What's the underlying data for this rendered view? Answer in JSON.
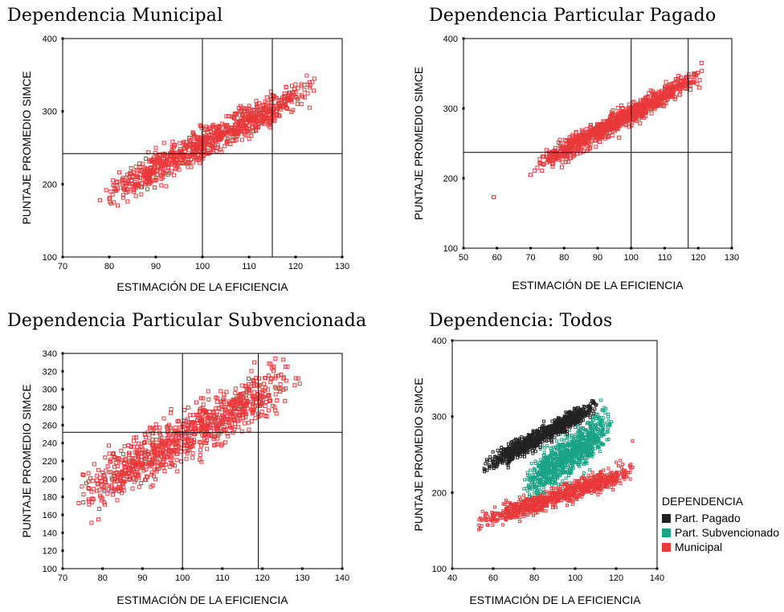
{
  "chart_data": [
    {
      "type": "scatter",
      "title": "Dependencia Municipal",
      "xlabel": "ESTIMACIÓN DE LA EFICIENCIA",
      "ylabel": "PUNTAJE PROMEDIO SIMCE",
      "xlim": [
        70,
        130
      ],
      "ylim": [
        100,
        400
      ],
      "xticks": [
        "70",
        "80",
        "90",
        "100",
        "110",
        "120",
        "130"
      ],
      "yticks": [
        "100",
        "200",
        "300",
        "400"
      ],
      "ref_lines": {
        "x": [
          100,
          115
        ],
        "y": [
          242
        ]
      },
      "marker_color": "#e8393b",
      "cloud": {
        "x_range": [
          78,
          125
        ],
        "trend": {
          "x1": 78,
          "y1": 182,
          "x2": 125,
          "y2": 338
        },
        "spread": 18
      },
      "series": [
        {
          "points": [
            [
              78,
              178
            ],
            [
              80,
              180
            ],
            [
              83,
              185
            ],
            [
              86,
              200
            ],
            [
              90,
              205
            ],
            [
              92,
              215
            ],
            [
              95,
              220
            ],
            [
              98,
              230
            ],
            [
              100,
              235
            ],
            [
              103,
              245
            ],
            [
              106,
              255
            ],
            [
              110,
              270
            ],
            [
              113,
              285
            ],
            [
              115,
              300
            ],
            [
              120,
              320
            ],
            [
              123,
              340
            ],
            [
              124,
              345
            ],
            [
              123,
              305
            ],
            [
              98,
              270
            ],
            [
              90,
              250
            ]
          ]
        }
      ]
    },
    {
      "type": "scatter",
      "title": "Dependencia Particular Pagado",
      "xlabel": "ESTIMACIÓN DE LA EFICIENCIA",
      "ylabel": "PUNTAJE PROMEDIO SIMCE",
      "xlim": [
        50,
        130
      ],
      "ylim": [
        100,
        400
      ],
      "xticks": [
        "50",
        "60",
        "70",
        "80",
        "90",
        "100",
        "110",
        "120",
        "130"
      ],
      "yticks": [
        "100",
        "200",
        "300",
        "400"
      ],
      "ref_lines": {
        "x": [
          100,
          117
        ],
        "y": [
          237
        ]
      },
      "marker_color": "#e8393b",
      "cloud": {
        "x_range": [
          70,
          122
        ],
        "trend": {
          "x1": 70,
          "y1": 215,
          "x2": 122,
          "y2": 350
        },
        "spread": 12
      },
      "series": [
        {
          "points": [
            [
              59,
              173
            ],
            [
              70,
              205
            ],
            [
              72,
              215
            ],
            [
              75,
              230
            ],
            [
              80,
              245
            ],
            [
              85,
              260
            ],
            [
              90,
              275
            ],
            [
              95,
              290
            ],
            [
              100,
              300
            ],
            [
              105,
              315
            ],
            [
              110,
              330
            ],
            [
              115,
              340
            ],
            [
              119,
              350
            ],
            [
              121,
              365
            ]
          ]
        }
      ]
    },
    {
      "type": "scatter",
      "title": "Dependencia Particular Subvencionada",
      "xlabel": "ESTIMACIÓN DE LA EFICIENCIA",
      "ylabel": "PUNTAJE PROMEDIO SIMCE",
      "xlim": [
        70,
        140
      ],
      "ylim": [
        100,
        340
      ],
      "xticks": [
        "70",
        "80",
        "90",
        "100",
        "110",
        "120",
        "130",
        "140"
      ],
      "yticks": [
        "100",
        "120",
        "140",
        "160",
        "180",
        "200",
        "220",
        "240",
        "260",
        "280",
        "300",
        "320",
        "340"
      ],
      "ref_lines": {
        "x": [
          100,
          119
        ],
        "y": [
          252
        ]
      },
      "marker_color": "#e8393b",
      "cloud": {
        "x_range": [
          73,
          130
        ],
        "trend": {
          "x1": 73,
          "y1": 180,
          "x2": 130,
          "y2": 318
        },
        "spread": 24
      },
      "series": [
        {
          "points": [
            [
              74,
              173
            ],
            [
              75,
              205
            ],
            [
              80,
              178
            ],
            [
              85,
              195
            ],
            [
              90,
              215
            ],
            [
              95,
              230
            ],
            [
              100,
              245
            ],
            [
              105,
              265
            ],
            [
              110,
              280
            ],
            [
              115,
              295
            ],
            [
              118,
              330
            ],
            [
              124,
              315
            ],
            [
              129,
              312
            ]
          ]
        }
      ]
    },
    {
      "type": "scatter",
      "title": "Dependencia: Todos",
      "xlabel": "ESTIMACIÓN DE LA EFICIENCIA",
      "ylabel": "PUNTAJE PROMEDIO SIMCE",
      "xlim": [
        40,
        140
      ],
      "ylim": [
        100,
        400
      ],
      "xticks": [
        "40",
        "60",
        "80",
        "100",
        "120",
        "140"
      ],
      "yticks": [
        "100",
        "200",
        "300",
        "400"
      ],
      "legend": {
        "title": "DEPENDENCIA",
        "position": "right"
      },
      "series": [
        {
          "name": "Part. Pagado",
          "color": "#222222",
          "cloud": {
            "x_range": [
              55,
              112
            ],
            "trend": {
              "x1": 55,
              "y1": 232,
              "x2": 112,
              "y2": 318
            },
            "spread": 10
          },
          "points": [
            [
              56,
              230
            ],
            [
              60,
              240
            ],
            [
              70,
              265
            ],
            [
              80,
              280
            ],
            [
              90,
              295
            ],
            [
              100,
              305
            ],
            [
              110,
              315
            ]
          ]
        },
        {
          "name": "Part. Subvencionado",
          "color": "#1aa386",
          "cloud": {
            "x_range": [
              75,
              118
            ],
            "trend": {
              "x1": 75,
              "y1": 208,
              "x2": 118,
              "y2": 290
            },
            "spread": 22
          },
          "points": [
            [
              75,
              205
            ],
            [
              80,
              220
            ],
            [
              90,
              245
            ],
            [
              100,
              260
            ],
            [
              110,
              285
            ],
            [
              115,
              310
            ]
          ]
        },
        {
          "name": "Municipal",
          "color": "#e8393b",
          "cloud": {
            "x_range": [
              52,
              130
            ],
            "trend": {
              "x1": 52,
              "y1": 160,
              "x2": 130,
              "y2": 230
            },
            "spread": 10
          },
          "points": [
            [
              53,
              157
            ],
            [
              60,
              165
            ],
            [
              70,
              175
            ],
            [
              80,
              185
            ],
            [
              90,
              195
            ],
            [
              100,
              205
            ],
            [
              110,
              220
            ],
            [
              120,
              240
            ],
            [
              128,
              268
            ]
          ]
        }
      ]
    }
  ]
}
